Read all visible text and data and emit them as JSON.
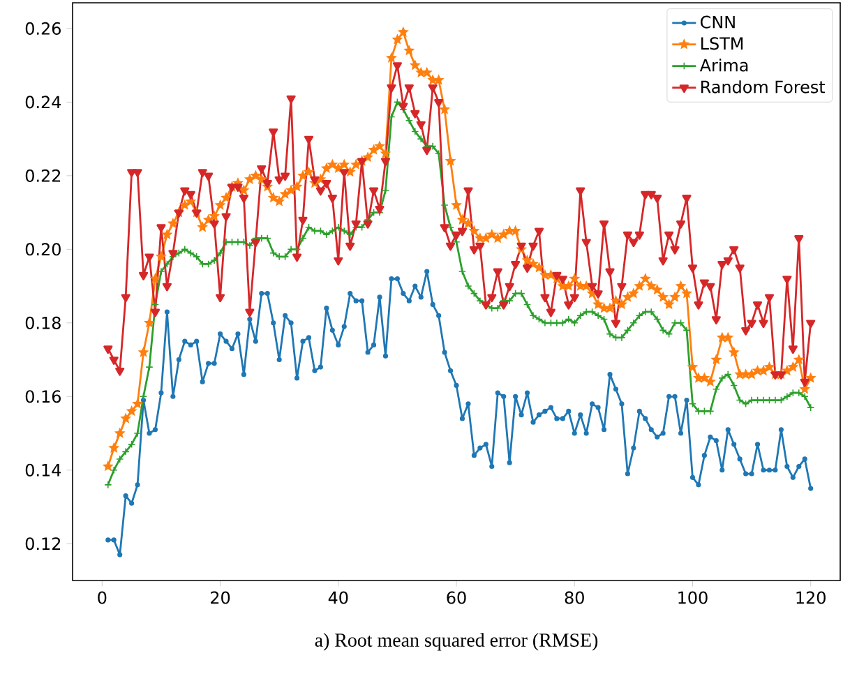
{
  "chart_data": {
    "type": "line",
    "xlabel": "a) Root mean squared error (RMSE)",
    "x": [
      1,
      2,
      3,
      4,
      5,
      6,
      7,
      8,
      9,
      10,
      11,
      12,
      13,
      14,
      15,
      16,
      17,
      18,
      19,
      20,
      21,
      22,
      23,
      24,
      25,
      26,
      27,
      28,
      29,
      30,
      31,
      32,
      33,
      34,
      35,
      36,
      37,
      38,
      39,
      40,
      41,
      42,
      43,
      44,
      45,
      46,
      47,
      48,
      49,
      50,
      51,
      52,
      53,
      54,
      55,
      56,
      57,
      58,
      59,
      60,
      61,
      62,
      63,
      64,
      65,
      66,
      67,
      68,
      69,
      70,
      71,
      72,
      73,
      74,
      75,
      76,
      77,
      78,
      79,
      80,
      81,
      82,
      83,
      84,
      85,
      86,
      87,
      88,
      89,
      90,
      91,
      92,
      93,
      94,
      95,
      96,
      97,
      98,
      99,
      100,
      101,
      102,
      103,
      104,
      105,
      106,
      107,
      108,
      109,
      110,
      111,
      112,
      113,
      114,
      115,
      116,
      117,
      118,
      119,
      120
    ],
    "series": [
      {
        "name": "CNN",
        "color": "#1f77b4",
        "marker": "circle",
        "values": [
          0.121,
          0.121,
          0.117,
          0.133,
          0.131,
          0.136,
          0.159,
          0.15,
          0.151,
          0.161,
          0.183,
          0.16,
          0.17,
          0.175,
          0.174,
          0.175,
          0.164,
          0.169,
          0.169,
          0.177,
          0.175,
          0.173,
          0.177,
          0.166,
          0.181,
          0.175,
          0.188,
          0.188,
          0.18,
          0.17,
          0.182,
          0.18,
          0.165,
          0.175,
          0.176,
          0.167,
          0.168,
          0.184,
          0.178,
          0.174,
          0.179,
          0.188,
          0.186,
          0.186,
          0.172,
          0.174,
          0.187,
          0.171,
          0.192,
          0.192,
          0.188,
          0.186,
          0.19,
          0.187,
          0.194,
          0.185,
          0.182,
          0.172,
          0.167,
          0.163,
          0.154,
          0.158,
          0.144,
          0.146,
          0.147,
          0.141,
          0.161,
          0.16,
          0.142,
          0.16,
          0.155,
          0.161,
          0.153,
          0.155,
          0.156,
          0.157,
          0.154,
          0.154,
          0.156,
          0.15,
          0.155,
          0.15,
          0.158,
          0.157,
          0.151,
          0.166,
          0.162,
          0.158,
          0.139,
          0.146,
          0.156,
          0.154,
          0.151,
          0.149,
          0.15,
          0.16,
          0.16,
          0.15,
          0.159,
          0.138,
          0.136,
          0.144,
          0.149,
          0.148,
          0.14,
          0.151,
          0.147,
          0.143,
          0.139,
          0.139,
          0.147,
          0.14,
          0.14,
          0.14,
          0.151,
          0.141,
          0.138,
          0.141,
          0.143,
          0.135
        ]
      },
      {
        "name": "LSTM",
        "color": "#ff7f0e",
        "marker": "star",
        "values": [
          0.141,
          0.146,
          0.15,
          0.154,
          0.156,
          0.158,
          0.172,
          0.18,
          0.192,
          0.198,
          0.204,
          0.207,
          0.21,
          0.212,
          0.213,
          0.21,
          0.206,
          0.208,
          0.209,
          0.212,
          0.214,
          0.217,
          0.218,
          0.216,
          0.219,
          0.22,
          0.219,
          0.217,
          0.214,
          0.213,
          0.215,
          0.216,
          0.217,
          0.22,
          0.221,
          0.218,
          0.219,
          0.222,
          0.223,
          0.222,
          0.223,
          0.221,
          0.223,
          0.224,
          0.225,
          0.227,
          0.228,
          0.226,
          0.252,
          0.257,
          0.259,
          0.254,
          0.25,
          0.248,
          0.248,
          0.246,
          0.246,
          0.238,
          0.224,
          0.212,
          0.208,
          0.207,
          0.205,
          0.203,
          0.203,
          0.204,
          0.203,
          0.204,
          0.205,
          0.205,
          0.2,
          0.197,
          0.196,
          0.195,
          0.193,
          0.193,
          0.192,
          0.19,
          0.19,
          0.192,
          0.19,
          0.19,
          0.188,
          0.185,
          0.184,
          0.184,
          0.186,
          0.185,
          0.187,
          0.188,
          0.19,
          0.192,
          0.19,
          0.189,
          0.187,
          0.185,
          0.187,
          0.19,
          0.188,
          0.168,
          0.165,
          0.165,
          0.164,
          0.17,
          0.176,
          0.176,
          0.172,
          0.166,
          0.166,
          0.166,
          0.167,
          0.167,
          0.168,
          0.166,
          0.166,
          0.167,
          0.168,
          0.17,
          0.162,
          0.165
        ]
      },
      {
        "name": "Arima",
        "color": "#2ca02c",
        "marker": "cross",
        "values": [
          0.136,
          0.14,
          0.143,
          0.145,
          0.147,
          0.15,
          0.16,
          0.168,
          0.185,
          0.194,
          0.196,
          0.198,
          0.199,
          0.2,
          0.199,
          0.198,
          0.196,
          0.196,
          0.197,
          0.199,
          0.202,
          0.202,
          0.202,
          0.202,
          0.201,
          0.203,
          0.203,
          0.203,
          0.199,
          0.198,
          0.198,
          0.2,
          0.2,
          0.203,
          0.206,
          0.205,
          0.205,
          0.204,
          0.205,
          0.206,
          0.205,
          0.204,
          0.206,
          0.206,
          0.208,
          0.21,
          0.21,
          0.216,
          0.236,
          0.24,
          0.238,
          0.235,
          0.232,
          0.23,
          0.228,
          0.228,
          0.226,
          0.212,
          0.206,
          0.202,
          0.194,
          0.19,
          0.188,
          0.186,
          0.185,
          0.184,
          0.184,
          0.186,
          0.186,
          0.188,
          0.188,
          0.185,
          0.182,
          0.181,
          0.18,
          0.18,
          0.18,
          0.18,
          0.181,
          0.18,
          0.182,
          0.183,
          0.183,
          0.182,
          0.181,
          0.177,
          0.176,
          0.176,
          0.178,
          0.18,
          0.182,
          0.183,
          0.183,
          0.181,
          0.178,
          0.177,
          0.18,
          0.18,
          0.178,
          0.158,
          0.156,
          0.156,
          0.156,
          0.162,
          0.165,
          0.166,
          0.163,
          0.159,
          0.158,
          0.159,
          0.159,
          0.159,
          0.159,
          0.159,
          0.159,
          0.16,
          0.161,
          0.161,
          0.16,
          0.157
        ]
      },
      {
        "name": "Random Forest",
        "color": "#d62728",
        "marker": "triangle",
        "values": [
          0.173,
          0.17,
          0.167,
          0.187,
          0.221,
          0.221,
          0.193,
          0.198,
          0.183,
          0.206,
          0.19,
          0.199,
          0.21,
          0.216,
          0.215,
          0.21,
          0.221,
          0.22,
          0.207,
          0.187,
          0.209,
          0.217,
          0.217,
          0.214,
          0.183,
          0.202,
          0.222,
          0.218,
          0.232,
          0.219,
          0.22,
          0.241,
          0.198,
          0.208,
          0.23,
          0.219,
          0.216,
          0.218,
          0.214,
          0.197,
          0.221,
          0.201,
          0.207,
          0.224,
          0.207,
          0.216,
          0.211,
          0.224,
          0.244,
          0.25,
          0.239,
          0.244,
          0.237,
          0.234,
          0.227,
          0.244,
          0.24,
          0.206,
          0.201,
          0.204,
          0.205,
          0.216,
          0.2,
          0.201,
          0.185,
          0.187,
          0.194,
          0.185,
          0.19,
          0.196,
          0.201,
          0.195,
          0.201,
          0.205,
          0.187,
          0.183,
          0.193,
          0.192,
          0.185,
          0.187,
          0.216,
          0.202,
          0.19,
          0.188,
          0.207,
          0.194,
          0.18,
          0.19,
          0.204,
          0.202,
          0.204,
          0.215,
          0.215,
          0.214,
          0.197,
          0.204,
          0.2,
          0.207,
          0.214,
          0.195,
          0.185,
          0.191,
          0.19,
          0.181,
          0.196,
          0.197,
          0.2,
          0.195,
          0.178,
          0.18,
          0.185,
          0.18,
          0.187,
          0.166,
          0.166,
          0.192,
          0.173,
          0.203,
          0.164,
          0.18
        ]
      }
    ],
    "xlim": [
      -5,
      125
    ],
    "ylim": [
      0.11,
      0.267
    ],
    "xticks": [
      0,
      20,
      40,
      60,
      80,
      100,
      120
    ],
    "yticks": [
      {
        "value": 0.12,
        "label": "0.12"
      },
      {
        "value": 0.14,
        "label": "0.14"
      },
      {
        "value": 0.16,
        "label": "0.16"
      },
      {
        "value": 0.18,
        "label": "0.18"
      },
      {
        "value": 0.2,
        "label": "0.20"
      },
      {
        "value": 0.22,
        "label": "0.22"
      },
      {
        "value": 0.24,
        "label": "0.24"
      },
      {
        "value": 0.26,
        "label": "0.26"
      }
    ],
    "legend": "top right",
    "line_style": "solid"
  }
}
